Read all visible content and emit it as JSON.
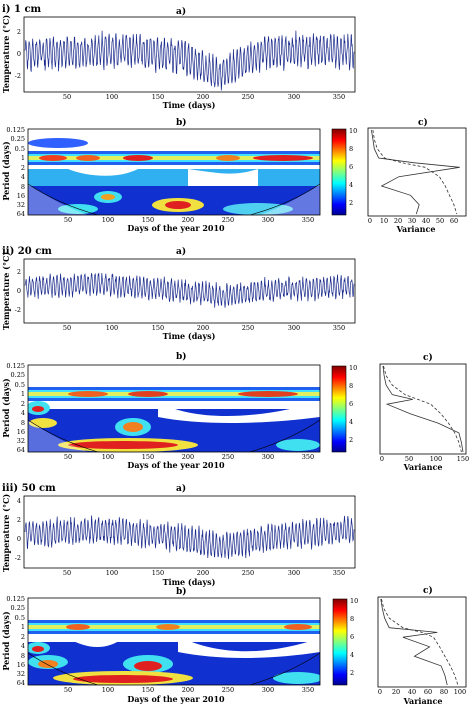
{
  "sections": [
    {
      "label": "i) 1 cm",
      "ts": {
        "title": "a)",
        "ylabel": "Temperature (°C)",
        "xlabel": "Time (days)",
        "yticks": [
          "2",
          "0",
          "-2"
        ],
        "xticks": [
          "50",
          "100",
          "150",
          "200",
          "250",
          "300",
          "350"
        ]
      },
      "wavelet": {
        "title": "b)",
        "ylabel": "Period (days)",
        "xlabel": "Days of the year 2010",
        "yticks": [
          "0.125",
          "0.25",
          "0.5",
          "1",
          "2",
          "4",
          "8",
          "16",
          "32",
          "64"
        ],
        "xticks": [
          "50",
          "100",
          "150",
          "200",
          "250",
          "300",
          "350"
        ],
        "cbar_ticks": [
          "10",
          "8",
          "6",
          "4",
          "2"
        ]
      },
      "variance": {
        "title": "c)",
        "xlabel": "Variance",
        "xticks": [
          "0",
          "10",
          "20",
          "30",
          "40",
          "50",
          "60"
        ]
      }
    },
    {
      "label": "ii) 20 cm",
      "ts": {
        "title": "a)",
        "ylabel": "Temperature (°C)",
        "xlabel": "Time (days)",
        "yticks": [
          "2",
          "0",
          "-2"
        ],
        "xticks": [
          "50",
          "100",
          "150",
          "200",
          "250",
          "300",
          "350"
        ]
      },
      "wavelet": {
        "title": "b)",
        "ylabel": "Period (days)",
        "xlabel": "Days of the year 2010",
        "yticks": [
          "0.125",
          "0.25",
          "0.5",
          "1",
          "2",
          "4",
          "8",
          "16",
          "32",
          "64"
        ],
        "xticks": [
          "50",
          "100",
          "150",
          "200",
          "250",
          "300",
          "350"
        ],
        "cbar_ticks": [
          "10",
          "8",
          "6",
          "4",
          "2"
        ]
      },
      "variance": {
        "title": "c)",
        "xlabel": "Variance",
        "xticks": [
          "0",
          "50",
          "100",
          "150"
        ]
      }
    },
    {
      "label": "iii) 50 cm",
      "ts": {
        "title": "a)",
        "ylabel": "Temperature (°C)",
        "xlabel": "Time (days)",
        "yticks": [
          "4",
          "2",
          "0",
          "-2"
        ],
        "xticks": [
          "50",
          "100",
          "150",
          "200",
          "250",
          "300",
          "350"
        ]
      },
      "wavelet": {
        "title": "b)",
        "ylabel": "Period (days)",
        "xlabel": "Days of the year 2010",
        "yticks": [
          "0.125",
          "0.25",
          "0.5",
          "1",
          "2",
          "4",
          "8",
          "16",
          "32",
          "64"
        ],
        "xticks": [
          "50",
          "100",
          "150",
          "200",
          "250",
          "300",
          "350"
        ],
        "cbar_ticks": [
          "10",
          "8",
          "6",
          "4",
          "2"
        ]
      },
      "variance": {
        "title": "c)",
        "xlabel": "Variance",
        "xticks": [
          "0",
          "20",
          "40",
          "60",
          "80",
          "100"
        ]
      }
    }
  ],
  "chart_data": [
    {
      "type": "line",
      "panel": "i-a",
      "xlabel": "Time (days)",
      "ylabel": "Temperature (°C)",
      "xlim": [
        0,
        365
      ],
      "ylim": [
        -2.5,
        3
      ],
      "series": [
        {
          "color": "#1a2a8c",
          "amplitude": 1.3,
          "cycles": 95,
          "trend_days": [
            0,
            60,
            120,
            180,
            215,
            260,
            320,
            365
          ],
          "trend_values": [
            0.3,
            0.4,
            0.6,
            0.0,
            -1.3,
            0.4,
            0.6,
            0.5
          ]
        }
      ]
    },
    {
      "type": "heatmap",
      "panel": "i-b",
      "xlabel": "Days of the year 2010",
      "ylabel": "Period (days)",
      "xlim": [
        0,
        365
      ],
      "periods_log2": [
        -3,
        6
      ],
      "colorbar": [
        0,
        10
      ]
    },
    {
      "type": "line",
      "panel": "i-c",
      "xlabel": "Variance",
      "xlim": [
        0,
        65
      ],
      "period_log2": [
        -3,
        -2,
        -1,
        0,
        0.5,
        1,
        2,
        3,
        4,
        5,
        6
      ],
      "series": [
        {
          "style": "solid",
          "values": [
            1,
            2,
            3,
            6,
            30,
            62,
            20,
            8,
            28,
            34,
            32
          ]
        },
        {
          "style": "dashed",
          "values": [
            2,
            3,
            5,
            10,
            22,
            38,
            48,
            52,
            55,
            58,
            60
          ]
        }
      ]
    },
    {
      "type": "line",
      "panel": "ii-a",
      "xlabel": "Time (days)",
      "ylabel": "Temperature (°C)",
      "xlim": [
        0,
        365
      ],
      "ylim": [
        -3.5,
        3.5
      ],
      "series": [
        {
          "color": "#1a2a8c",
          "amplitude": 1.3,
          "cycles": 95,
          "trend_days": [
            0,
            80,
            150,
            220,
            280,
            365
          ],
          "trend_values": [
            0.4,
            0.8,
            0.2,
            -0.6,
            0.2,
            0.5
          ]
        }
      ]
    },
    {
      "type": "heatmap",
      "panel": "ii-b",
      "xlabel": "Days of the year 2010",
      "ylabel": "Period (days)",
      "xlim": [
        0,
        365
      ],
      "periods_log2": [
        -3,
        6
      ],
      "colorbar": [
        0,
        10
      ]
    },
    {
      "type": "line",
      "panel": "ii-c",
      "xlabel": "Variance",
      "xlim": [
        0,
        160
      ],
      "period_log2": [
        -3,
        -2,
        -1,
        0,
        0.5,
        1,
        2,
        3,
        4,
        5,
        6
      ],
      "series": [
        {
          "style": "solid",
          "values": [
            2,
            4,
            8,
            20,
            60,
            10,
            55,
            110,
            150,
            155,
            158
          ]
        },
        {
          "style": "dashed",
          "values": [
            3,
            8,
            20,
            45,
            70,
            95,
            115,
            130,
            142,
            150,
            155
          ]
        }
      ]
    },
    {
      "type": "line",
      "panel": "iii-a",
      "xlabel": "Time (days)",
      "ylabel": "Temperature (°C)",
      "xlim": [
        0,
        365
      ],
      "ylim": [
        -3,
        4.5
      ],
      "series": [
        {
          "color": "#1a2a8c",
          "amplitude": 1.5,
          "cycles": 95,
          "trend_days": [
            0,
            100,
            160,
            220,
            280,
            365
          ],
          "trend_values": [
            0.6,
            0.9,
            0.3,
            -0.8,
            0.3,
            1.0
          ]
        }
      ]
    },
    {
      "type": "heatmap",
      "panel": "iii-b",
      "xlabel": "Days of the year 2010",
      "ylabel": "Period (days)",
      "xlim": [
        0,
        365
      ],
      "periods_log2": [
        -3,
        6
      ],
      "colorbar": [
        0,
        10
      ]
    },
    {
      "type": "line",
      "panel": "iii-c",
      "xlabel": "Variance",
      "xlim": [
        0,
        110
      ],
      "period_log2": [
        -3,
        -2,
        -1,
        0,
        0.5,
        1,
        2,
        3,
        4,
        5,
        6
      ],
      "series": [
        {
          "style": "solid",
          "values": [
            1,
            3,
            6,
            12,
            75,
            30,
            65,
            45,
            80,
            85,
            88
          ]
        },
        {
          "style": "dashed",
          "values": [
            2,
            5,
            12,
            30,
            55,
            70,
            78,
            85,
            92,
            98,
            102
          ]
        }
      ]
    }
  ]
}
